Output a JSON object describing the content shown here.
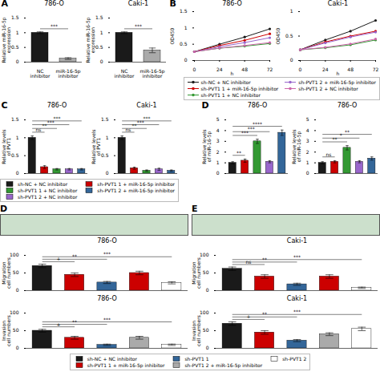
{
  "chart_data": [
    {
      "type": "bar",
      "title": "786-O",
      "ylabel": "Relative miR-16-5p\nexpression",
      "categories": [
        "NC\ninhibitor",
        "miR-16-5p\ninhibitor"
      ],
      "values": [
        1.0,
        0.12
      ],
      "errors": [
        0.03,
        0.03
      ],
      "colors": [
        "#1a1a1a",
        "#aaaaaa"
      ],
      "ylim": [
        0,
        1.5
      ],
      "yticks": [
        0,
        0.5,
        1,
        1.5
      ],
      "annotations": [
        {
          "text": "A"
        },
        {
          "text": "***",
          "from": 0,
          "to": 1
        }
      ]
    },
    {
      "type": "bar",
      "title": "Caki-1",
      "ylabel": "Relative miR-16-5p\nexpression",
      "categories": [
        "NC\ninhibitor",
        "miR-16-5p\ninhibitor"
      ],
      "values": [
        1.0,
        0.4
      ],
      "errors": [
        0.03,
        0.08
      ],
      "colors": [
        "#1a1a1a",
        "#aaaaaa"
      ],
      "ylim": [
        0,
        1.5
      ],
      "yticks": [
        0,
        0.5,
        1,
        1.5
      ],
      "annotations": [
        {
          "text": "***",
          "from": 0,
          "to": 1
        }
      ]
    },
    {
      "type": "line",
      "title": "786-O",
      "xlabel": "h",
      "ylabel": "OD450",
      "x": [
        0,
        24,
        48,
        72
      ],
      "xlim": [
        0,
        72
      ],
      "xticks": [
        0,
        24,
        48,
        72
      ],
      "ylim": [
        0.0,
        1.5
      ],
      "yticks": [
        0,
        0.5,
        1,
        1.5
      ],
      "marker": "circle",
      "series": [
        {
          "color": "#1a1a1a",
          "values": [
            0.27,
            0.5,
            0.72,
            0.97
          ]
        },
        {
          "color": "#cc0000",
          "values": [
            0.27,
            0.46,
            0.62,
            0.82
          ]
        },
        {
          "color": "#339933",
          "values": [
            0.27,
            0.38,
            0.44,
            0.52
          ]
        },
        {
          "color": "#9966cc",
          "values": [
            0.27,
            0.42,
            0.55,
            0.7
          ]
        },
        {
          "color": "#cc66aa",
          "values": [
            0.27,
            0.38,
            0.46,
            0.55
          ]
        }
      ],
      "annotations": [
        {
          "text": "B"
        }
      ]
    },
    {
      "type": "line",
      "title": "Caki-1",
      "xlabel": "h",
      "ylabel": "OD450",
      "x": [
        0,
        24,
        48,
        72
      ],
      "xlim": [
        0,
        72
      ],
      "xticks": [
        0,
        24,
        48,
        72
      ],
      "ylim": [
        0.0,
        1.0
      ],
      "yticks": [
        0,
        0.5,
        1
      ],
      "marker": "circle",
      "legend": "below",
      "series": [
        {
          "name": "sh-NC + NC inhibitor",
          "color": "#1a1a1a",
          "values": [
            0.22,
            0.42,
            0.6,
            0.82
          ]
        },
        {
          "name": "sh-PVT1 1 + miR-16-5p inhibitor",
          "color": "#cc0000",
          "values": [
            0.22,
            0.38,
            0.5,
            0.6
          ]
        },
        {
          "name": "sh-PVT1 1 + NC inhibitor",
          "color": "#339933",
          "values": [
            0.22,
            0.26,
            0.32,
            0.42
          ]
        },
        {
          "name": "sh-PVT1 2 + miR-16-5p inhibitor",
          "color": "#9966cc",
          "values": [
            0.22,
            0.36,
            0.48,
            0.58
          ]
        },
        {
          "name": "sh-PVT1 2 + NC inhibitor",
          "color": "#cc66aa",
          "values": [
            0.22,
            0.27,
            0.34,
            0.44
          ]
        }
      ]
    },
    {
      "type": "bar",
      "title": "786-O",
      "ylabel": "Relative levels\nof PVT1",
      "categories": [
        null,
        null,
        null,
        null,
        null
      ],
      "ylim": [
        0,
        1.5
      ],
      "yticks": [
        0,
        0.5,
        1,
        1.5
      ],
      "legend": "below",
      "series": [
        {
          "name": "sh-NC + NC inhibitor",
          "color": "#1a1a1a",
          "values": [
            1.0,
            null,
            null,
            null,
            null
          ],
          "errors": [
            0.05,
            null,
            null,
            null,
            null
          ]
        },
        {
          "name": "sh-PVT1 1 + NC inhibitor",
          "color": "#339933",
          "values": [
            null,
            null,
            0.12,
            null,
            null
          ],
          "errors": [
            null,
            null,
            0.02,
            null,
            null
          ]
        },
        {
          "name": "sh-PVT1 2 + NC inhibitor",
          "color": "#9966cc",
          "values": [
            null,
            null,
            null,
            0.12,
            null
          ],
          "errors": [
            null,
            null,
            null,
            0.02,
            null
          ]
        },
        {
          "name": "sh-PVT1 1 + miR-16-5p inhibitor",
          "color": "#cc0000",
          "values": [
            null,
            0.18,
            null,
            null,
            null
          ],
          "errors": [
            null,
            0.04,
            null,
            null,
            null
          ]
        },
        {
          "name": "sh-PVT1 2 + miR-16-5p inhibitor",
          "color": "#336699",
          "values": [
            null,
            null,
            null,
            null,
            0.12
          ],
          "errors": [
            null,
            null,
            null,
            null,
            0.02
          ]
        }
      ],
      "annotations": [
        {
          "text": "C"
        },
        {
          "text": "ns",
          "from": 0,
          "to": 1
        },
        {
          "text": "**",
          "from": 0,
          "to": 2
        },
        {
          "text": "***",
          "from": 0,
          "to": 3
        },
        {
          "text": "***",
          "from": 0,
          "to": 4
        }
      ]
    },
    {
      "type": "bar",
      "title": "Caki-1",
      "ylabel": "Relative levels\nof PVT1",
      "categories": [
        null,
        null,
        null,
        null,
        null
      ],
      "values": [
        1.0,
        0.15,
        0.08,
        0.12,
        0.08
      ],
      "errors": [
        0.05,
        0.03,
        0.02,
        0.03,
        0.02
      ],
      "colors": [
        "#1a1a1a",
        "#cc0000",
        "#339933",
        "#9966cc",
        "#336699"
      ],
      "ylim": [
        0,
        1.5
      ],
      "yticks": [
        0,
        0.5,
        1,
        1.5
      ],
      "annotations": [
        {
          "text": "ns",
          "from": 0,
          "to": 1
        },
        {
          "text": "**",
          "from": 0,
          "to": 2
        },
        {
          "text": "***",
          "from": 0,
          "to": 3
        },
        {
          "text": "***",
          "from": 0,
          "to": 4
        }
      ]
    },
    {
      "type": "bar",
      "title": "786-O",
      "ylabel": "Relative levels\nof miR-16-5p",
      "categories": [
        null,
        null,
        null,
        null,
        null
      ],
      "values": [
        1.0,
        1.2,
        3.0,
        1.1,
        3.8
      ],
      "errors": [
        0.1,
        0.15,
        0.2,
        0.1,
        0.25
      ],
      "colors": [
        "#1a1a1a",
        "#cc0000",
        "#339933",
        "#9966cc",
        "#336699"
      ],
      "ylim": [
        0,
        5
      ],
      "yticks": [
        0,
        1,
        2,
        3,
        4,
        5
      ],
      "annotations": [
        {
          "text": "D"
        },
        {
          "text": "**",
          "from": 0,
          "to": 1
        },
        {
          "text": "***",
          "from": 0,
          "to": 2
        },
        {
          "text": "***",
          "from": 0,
          "to": 3
        },
        {
          "text": "****",
          "from": 0,
          "to": 4
        }
      ]
    },
    {
      "type": "bar",
      "title": "786-O",
      "ylabel": "Relative levels\nof miR-16-5p",
      "categories": [
        null,
        null,
        null,
        null,
        null
      ],
      "values": [
        1.0,
        1.1,
        2.4,
        1.1,
        1.4
      ],
      "errors": [
        0.1,
        0.1,
        0.2,
        0.1,
        0.15
      ],
      "colors": [
        "#1a1a1a",
        "#cc0000",
        "#339933",
        "#9966cc",
        "#336699"
      ],
      "ylim": [
        0,
        5
      ],
      "yticks": [
        0,
        1,
        2,
        3,
        4,
        5
      ],
      "annotations": [
        {
          "text": "ns",
          "from": 0,
          "to": 1
        },
        {
          "text": "**",
          "from": 0,
          "to": 2
        },
        {
          "text": "*",
          "from": 0,
          "to": 3
        },
        {
          "text": "**",
          "from": 0,
          "to": 4
        }
      ]
    },
    {
      "type": "image",
      "color": "#cce0cc",
      "annotations": [
        {
          "text": "D"
        }
      ]
    },
    {
      "type": "image",
      "color": "#cce0cc",
      "annotations": [
        {
          "text": "E"
        }
      ]
    },
    {
      "type": "bar",
      "title": "786-O",
      "ylabel": "Migration\ncell numbers",
      "categories": [
        null,
        null,
        null,
        null,
        null
      ],
      "values": [
        70,
        45,
        23,
        50,
        22
      ],
      "errors": [
        5,
        5,
        3,
        5,
        3
      ],
      "colors": [
        "#1a1a1a",
        "#cc0000",
        "#336699",
        "#cc0000",
        "#ffffff"
      ],
      "ylim": [
        0,
        100
      ],
      "yticks": [
        0,
        50,
        100
      ],
      "annotations": [
        {
          "text": "+",
          "from": 0,
          "to": 1
        },
        {
          "text": "**",
          "from": 0,
          "to": 2
        },
        {
          "text": "***",
          "from": 0,
          "to": 4
        }
      ]
    },
    {
      "type": "bar",
      "title": "Caki-1",
      "ylabel": "Migration\ncell numbers",
      "categories": [
        null,
        null,
        null,
        null,
        null
      ],
      "values": [
        62,
        40,
        18,
        40,
        8
      ],
      "errors": [
        5,
        5,
        3,
        5,
        2
      ],
      "colors": [
        "#1a1a1a",
        "#cc0000",
        "#336699",
        "#cc0000",
        "#ffffff"
      ],
      "ylim": [
        0,
        100
      ],
      "yticks": [
        0,
        50,
        100
      ],
      "annotations": [
        {
          "text": "ns",
          "from": 0,
          "to": 1
        },
        {
          "text": "**",
          "from": 0,
          "to": 2
        },
        {
          "text": "***",
          "from": 0,
          "to": 4
        }
      ]
    },
    {
      "type": "bar",
      "title": "786-O",
      "ylabel": "Invasion\ncell numbers",
      "categories": [
        null,
        null,
        null,
        null,
        null
      ],
      "ylim": [
        0,
        100
      ],
      "yticks": [
        0,
        50,
        100
      ],
      "legend": "below",
      "series": [
        {
          "name": "sh-NC + NC inhibitor",
          "color": "#1a1a1a",
          "values": [
            50,
            null,
            null,
            null,
            null
          ],
          "errors": [
            4,
            null,
            null,
            null,
            null
          ]
        },
        {
          "name": "sh-PVT1 1 + miR-16-5p inhibitor",
          "color": "#cc0000",
          "values": [
            null,
            30,
            null,
            null,
            null
          ],
          "errors": [
            null,
            4,
            null,
            null,
            null
          ]
        },
        {
          "name": "sh-PVT1 1",
          "color": "#336699",
          "values": [
            null,
            null,
            10,
            null,
            null
          ],
          "errors": [
            null,
            null,
            2,
            null,
            null
          ]
        },
        {
          "name": "sh-PVT1 2 + miR-16-5p inhibitor",
          "color": "#aaaaaa",
          "values": [
            null,
            null,
            null,
            30,
            null
          ],
          "errors": [
            null,
            null,
            null,
            4,
            null
          ]
        },
        {
          "name": "sh-PVT1 2",
          "color": "#ffffff",
          "values": [
            null,
            null,
            null,
            null,
            10
          ],
          "errors": [
            null,
            null,
            null,
            null,
            2
          ]
        }
      ],
      "annotations": [
        {
          "text": "+",
          "from": 0,
          "to": 1
        },
        {
          "text": "**",
          "from": 0,
          "to": 2
        },
        {
          "text": "***",
          "from": 0,
          "to": 4
        }
      ]
    },
    {
      "type": "bar",
      "title": "Caki-1",
      "ylabel": "Invasion\ncell numbers",
      "categories": [
        null,
        null,
        null,
        null,
        null
      ],
      "values": [
        70,
        45,
        22,
        40,
        55
      ],
      "errors": [
        5,
        5,
        3,
        4,
        5
      ],
      "colors": [
        "#1a1a1a",
        "#cc0000",
        "#336699",
        "#aaaaaa",
        "#ffffff"
      ],
      "ylim": [
        0,
        100
      ],
      "yticks": [
        0,
        50,
        100
      ],
      "annotations": [
        {
          "text": "+",
          "from": 0,
          "to": 1
        },
        {
          "text": "**",
          "from": 0,
          "to": 2
        },
        {
          "text": "***",
          "from": 0,
          "to": 4
        }
      ]
    }
  ]
}
